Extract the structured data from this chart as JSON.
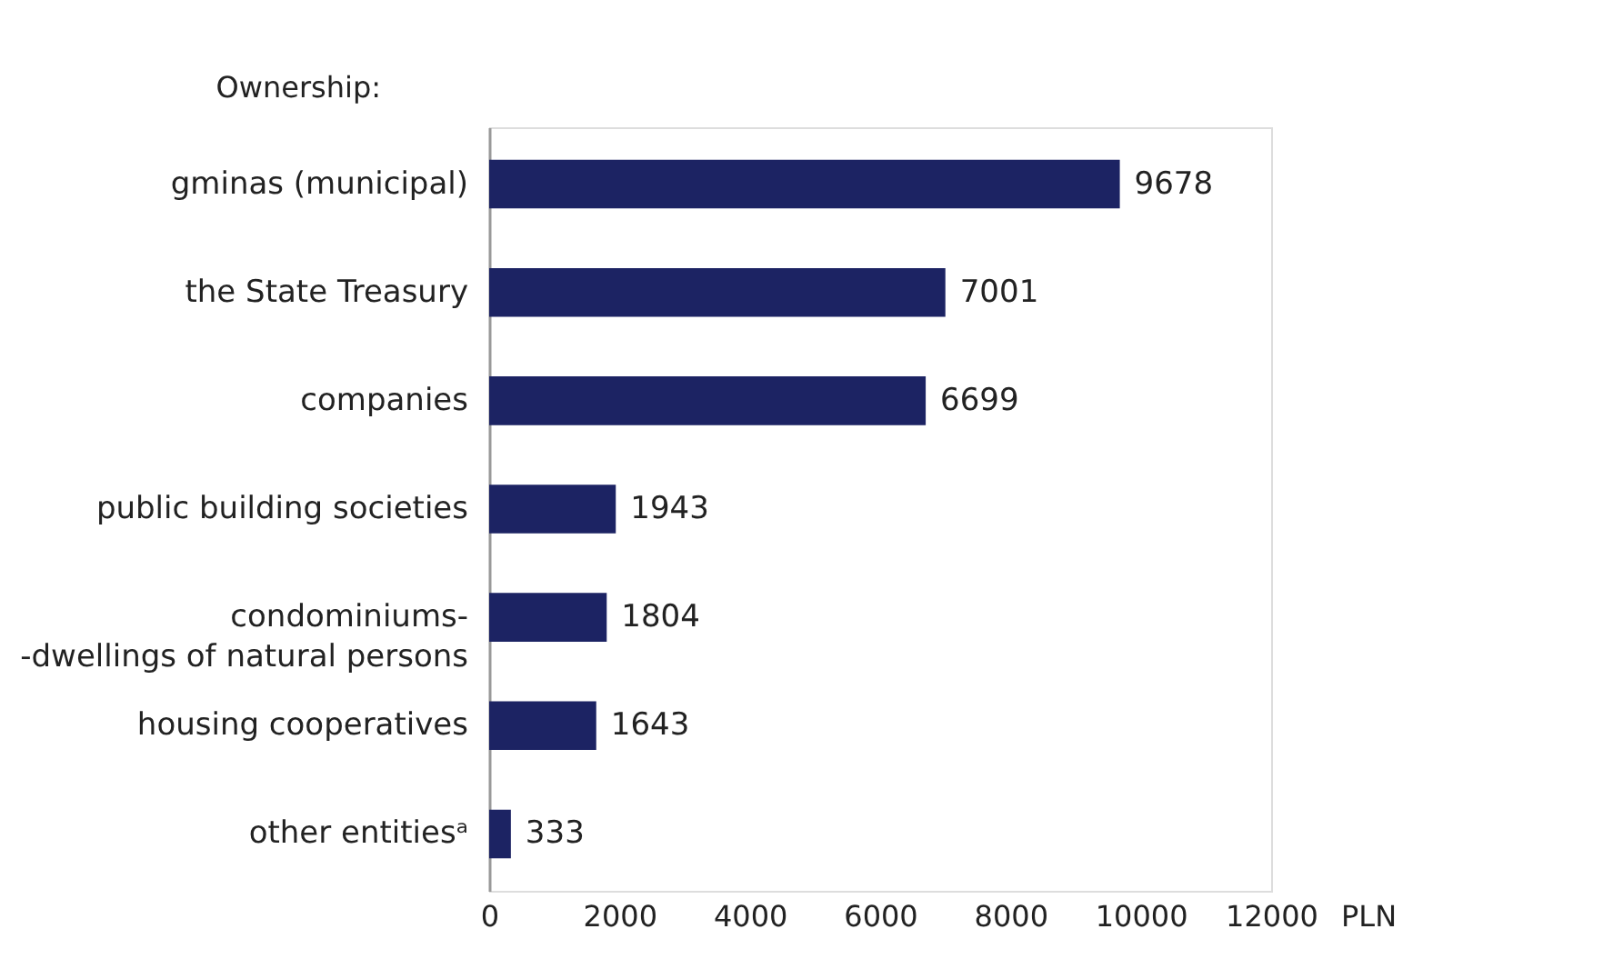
{
  "chart_data": {
    "type": "bar",
    "orientation": "horizontal",
    "ylabel": "Ownership:",
    "xlabel": "PLN",
    "categories": [
      "gminas (municipal)",
      "the State Treasury",
      "companies",
      "public building societies",
      "condominiums-\n-dwellings of natural persons",
      "housing cooperatives",
      "other entitiesᵃ"
    ],
    "values": [
      9678,
      7001,
      6699,
      1943,
      1804,
      1643,
      333
    ],
    "color": "#1c2363",
    "xlim": [
      0,
      12000
    ],
    "xticks": [
      0,
      2000,
      4000,
      6000,
      8000,
      10000,
      12000
    ],
    "data_labels": true,
    "grid": false
  }
}
